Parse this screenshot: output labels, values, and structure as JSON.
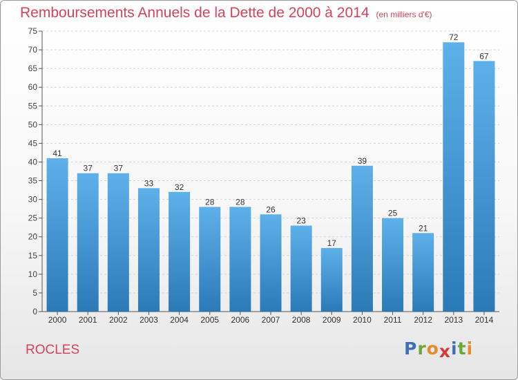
{
  "header": {
    "title": "Remboursements Annuels de la Dette de 2000 à 2014",
    "subtitle": "(en milliers d'€)"
  },
  "footer": {
    "location": "ROCLES",
    "brand": [
      "P",
      "r",
      "o",
      "x",
      "i",
      "t",
      "i"
    ]
  },
  "colors": {
    "accent": "#d4435a",
    "bar_top": "#5eb0ea",
    "bar_bottom": "#2a7ab8",
    "brand": [
      "#3f6fb7",
      "#6aa83b",
      "#e8892a",
      "#d43a3a",
      "#3f6fb7",
      "#6aa83b",
      "#e8892a"
    ]
  },
  "chart_data": {
    "type": "bar",
    "categories": [
      "2000",
      "2001",
      "2002",
      "2003",
      "2004",
      "2005",
      "2006",
      "2007",
      "2008",
      "2009",
      "2010",
      "2011",
      "2012",
      "2013",
      "2014"
    ],
    "values": [
      41,
      37,
      37,
      33,
      32,
      28,
      28,
      26,
      23,
      17,
      39,
      25,
      21,
      72,
      67
    ],
    "ylim": [
      0,
      75
    ],
    "ytick_step": 5,
    "grid": true
  }
}
